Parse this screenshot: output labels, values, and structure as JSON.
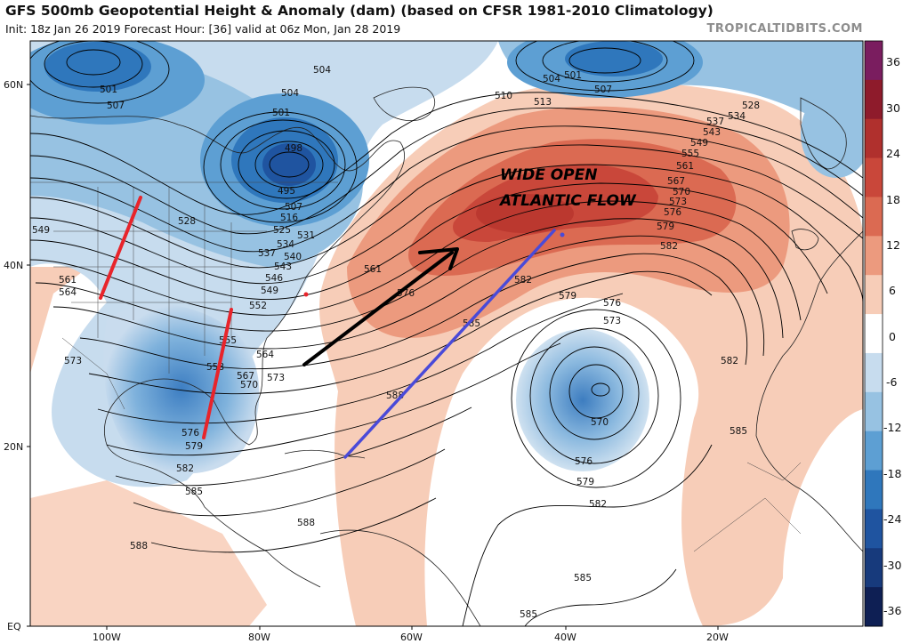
{
  "header": {
    "title": "GFS 500mb Geopotential Height & Anomaly (dam) (based on CFSR 1981-2010 Climatology)",
    "subtitle": "Init: 18z Jan 26 2019   Forecast Hour: [36]   valid at 06z Mon, Jan 28 2019",
    "brand": "TROPICALTIDBITS.COM"
  },
  "map": {
    "lat_labels": [
      "60N",
      "40N",
      "20N",
      "EQ"
    ],
    "lon_labels": [
      "100W",
      "80W",
      "60W",
      "40W",
      "20W"
    ],
    "annotation_line1": "WIDE OPEN",
    "annotation_line2": "ATLANTIC FLOW",
    "contour_labels": [
      "501",
      "507",
      "504",
      "504",
      "501",
      "498",
      "495",
      "507",
      "510",
      "513",
      "504",
      "501",
      "507",
      "528",
      "534",
      "537",
      "543",
      "549",
      "555",
      "561",
      "567",
      "570",
      "573",
      "576",
      "579",
      "582",
      "516",
      "525",
      "528",
      "531",
      "534",
      "537",
      "540",
      "543",
      "546",
      "549",
      "552",
      "549",
      "561",
      "564",
      "561",
      "576",
      "582",
      "585",
      "588",
      "579",
      "576",
      "573",
      "570",
      "576",
      "579",
      "582",
      "582",
      "585",
      "573",
      "555",
      "558",
      "564",
      "567",
      "570",
      "573",
      "576",
      "579",
      "582",
      "585",
      "588",
      "588",
      "585",
      "585"
    ],
    "anomaly_high_color": "#c8453a",
    "anomaly_low_color": "#2f6db5",
    "arrow_colors": {
      "red": "#e8242b",
      "black": "#000000",
      "blue": "#4a4ad8"
    }
  },
  "colorbar": {
    "ticks": [
      "36",
      "30",
      "24",
      "18",
      "12",
      "6",
      "0",
      "-6",
      "-12",
      "-18",
      "-24",
      "-30",
      "-36"
    ],
    "colors": [
      "#7a1d5f",
      "#8e1b2b",
      "#b0302d",
      "#c9473a",
      "#db6a52",
      "#ec9a7e",
      "#f7cdb8",
      "#ffffff",
      "#c7dcee",
      "#97c2e2",
      "#5d9fd3",
      "#2f77bc",
      "#1f54a0",
      "#173a7c",
      "#0e1f54"
    ]
  }
}
